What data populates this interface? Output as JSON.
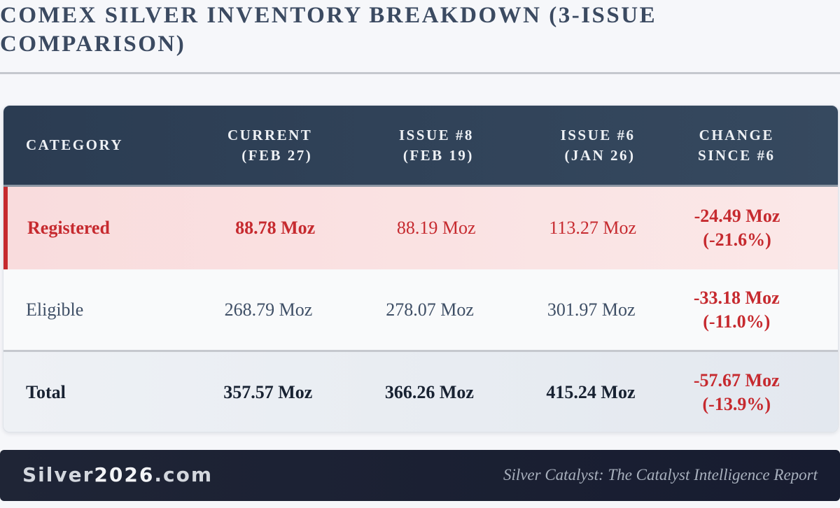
{
  "title": "COMEX SILVER INVENTORY BREAKDOWN (3-ISSUE COMPARISON)",
  "table": {
    "headers": [
      {
        "line1": "CATEGORY",
        "line2": ""
      },
      {
        "line1": "CURRENT",
        "line2": "(FEB 27)"
      },
      {
        "line1": "ISSUE #8",
        "line2": "(FEB 19)"
      },
      {
        "line1": "ISSUE #6",
        "line2": "(JAN 26)"
      },
      {
        "line1": "CHANGE",
        "line2": "SINCE #6"
      }
    ],
    "rows": [
      {
        "category": "Registered",
        "current": "88.78 Moz",
        "issue8": "88.19 Moz",
        "issue6": "113.27 Moz",
        "change": "-24.49 Moz",
        "change_pct": "(-21.6%)"
      },
      {
        "category": "Eligible",
        "current": "268.79 Moz",
        "issue8": "278.07 Moz",
        "issue6": "301.97 Moz",
        "change": "-33.18 Moz",
        "change_pct": "(-11.0%)"
      },
      {
        "category": "Total",
        "current": "357.57 Moz",
        "issue8": "366.26 Moz",
        "issue6": "415.24 Moz",
        "change": "-57.67 Moz",
        "change_pct": "(-13.9%)"
      }
    ]
  },
  "footer": {
    "brand_prefix": "Silver",
    "brand_accent": "2026",
    "brand_suffix": ".com",
    "report_name": "Silver Catalyst: The Catalyst Intelligence Report"
  },
  "colors": {
    "header_bg": "#2b3c52",
    "negative": "#c62a2f",
    "registered_bg": "#f9dcdd",
    "footer_bg": "#1f2536"
  }
}
